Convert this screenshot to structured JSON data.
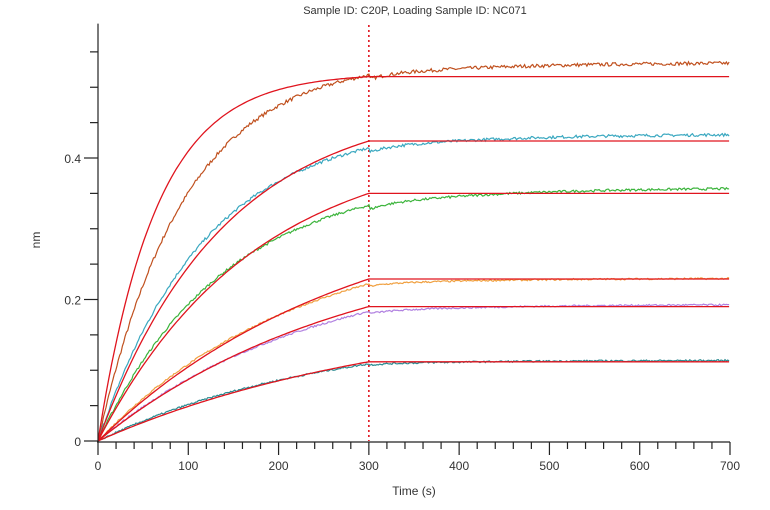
{
  "chart_data": {
    "type": "line",
    "title": "Sample ID: C20P, Loading Sample ID: NC071",
    "xlabel": "Time (s)",
    "ylabel": "nm",
    "xlim": [
      0,
      700
    ],
    "ylim": [
      0,
      0.59
    ],
    "x_ticks": [
      0,
      100,
      200,
      300,
      400,
      500,
      600,
      700
    ],
    "x_tick_labels": [
      "0",
      "100",
      "200",
      "300",
      "400",
      "500",
      "600",
      "700"
    ],
    "x_minor_step": 20,
    "y_ticks": [
      0,
      0.2,
      0.4
    ],
    "y_tick_labels": [
      "0",
      "0.2",
      "0.4"
    ],
    "y_minor_step": 0.05,
    "grid": false,
    "dissociation_start": 300,
    "fit_color": "#e0141e",
    "marker_line_color": "#e0141e",
    "series": [
      {
        "name": "trace-1",
        "color": "#c0501e",
        "fit_plateau": 0.515,
        "kobs": 0.0155,
        "data_at_300": 0.517,
        "data_end": 0.535,
        "assoc_shape": 0.0105
      },
      {
        "name": "trace-2",
        "color": "#3aa8c0",
        "fit_plateau": 0.424,
        "kobs": 0.0072,
        "data_at_300": 0.414,
        "data_end": 0.434,
        "assoc_shape": 0.0085
      },
      {
        "name": "trace-3",
        "color": "#3cb43c",
        "fit_plateau": 0.35,
        "kobs": 0.0058,
        "data_at_300": 0.333,
        "data_end": 0.358,
        "assoc_shape": 0.0072
      },
      {
        "name": "trace-4",
        "color": "#f0a040",
        "fit_plateau": 0.229,
        "kobs": 0.0036,
        "data_at_300": 0.222,
        "data_end": 0.23,
        "assoc_shape": 0.0045
      },
      {
        "name": "trace-5",
        "color": "#b080e0",
        "fit_plateau": 0.19,
        "kobs": 0.0036,
        "data_at_300": 0.183,
        "data_end": 0.193,
        "assoc_shape": 0.0042
      },
      {
        "name": "trace-6",
        "color": "#2a8a90",
        "fit_plateau": 0.112,
        "kobs": 0.003,
        "data_at_300": 0.109,
        "data_end": 0.114,
        "assoc_shape": 0.004
      }
    ]
  }
}
